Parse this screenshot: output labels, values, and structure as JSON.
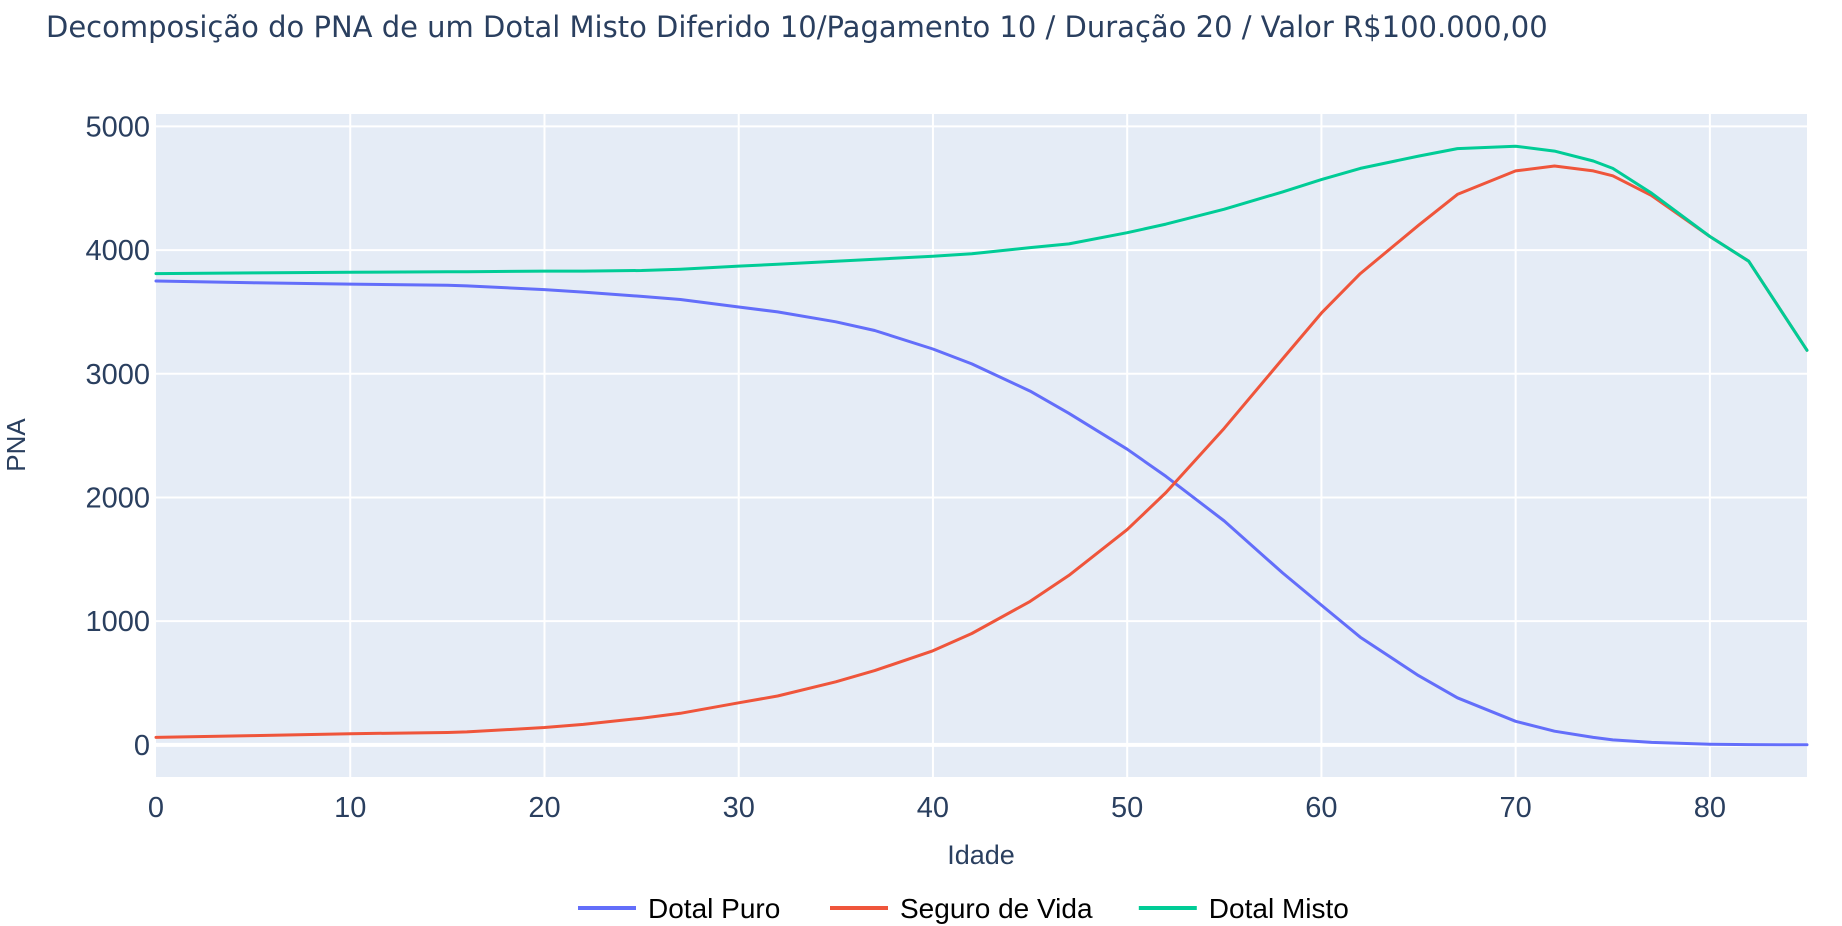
{
  "chart_data": {
    "type": "line",
    "title": "Decomposição do PNA de um Dotal Misto Diferido 10/Pagamento 10 / Duração 20 / Valor R$100.000,00",
    "xlabel": "Idade",
    "ylabel": "PNA",
    "xlim": [
      0,
      85
    ],
    "ylim": [
      -260,
      5100
    ],
    "xticks": [
      0,
      10,
      20,
      30,
      40,
      50,
      60,
      70,
      80
    ],
    "yticks": [
      0,
      1000,
      2000,
      3000,
      4000,
      5000
    ],
    "grid": true,
    "legend": "bottom-center",
    "x": [
      0,
      5,
      10,
      15,
      16,
      20,
      22,
      25,
      27,
      30,
      32,
      35,
      37,
      40,
      42,
      45,
      47,
      50,
      52,
      55,
      58,
      60,
      62,
      65,
      67,
      70,
      72,
      74,
      75,
      77,
      80,
      82,
      85
    ],
    "series": [
      {
        "name": "Dotal Puro",
        "color": "#636efa",
        "values": [
          3750,
          3735,
          3725,
          3715,
          3710,
          3680,
          3660,
          3625,
          3600,
          3540,
          3500,
          3420,
          3350,
          3200,
          3080,
          2860,
          2680,
          2390,
          2170,
          1810,
          1390,
          1130,
          870,
          560,
          380,
          190,
          110,
          60,
          40,
          20,
          5,
          2,
          0
        ]
      },
      {
        "name": "Seguro de Vida",
        "color": "#ef553b",
        "values": [
          60,
          75,
          90,
          100,
          105,
          140,
          165,
          215,
          255,
          340,
          395,
          510,
          600,
          760,
          900,
          1160,
          1370,
          1740,
          2040,
          2560,
          3120,
          3490,
          3810,
          4200,
          4450,
          4640,
          4680,
          4640,
          4600,
          4440,
          4110,
          3910,
          3190
        ]
      },
      {
        "name": "Dotal Misto",
        "color": "#00cc96",
        "values": [
          3810,
          3815,
          3820,
          3825,
          3825,
          3830,
          3830,
          3835,
          3845,
          3870,
          3885,
          3910,
          3925,
          3950,
          3970,
          4020,
          4050,
          4140,
          4210,
          4330,
          4470,
          4570,
          4660,
          4760,
          4820,
          4840,
          4800,
          4720,
          4660,
          4460,
          4110,
          3910,
          3190
        ]
      }
    ]
  }
}
